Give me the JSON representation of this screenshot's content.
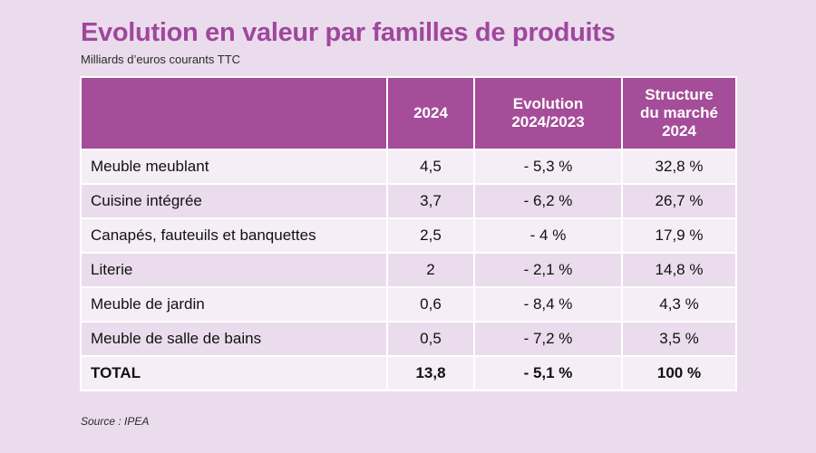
{
  "title": "Evolution en valeur par familles de produits",
  "subtitle": "Milliards d’euros courants TTC",
  "source": "Source : IPEA",
  "colors": {
    "header_bg": "#a54d99",
    "title": "#a0479d",
    "page_bg": "#eadcec",
    "row_light": "#f6eef6"
  },
  "chart_data": {
    "type": "table",
    "title": "Evolution en valeur par familles de produits",
    "subtitle": "Milliards d’euros courants TTC",
    "columns": [
      {
        "lines": [
          ""
        ]
      },
      {
        "lines": [
          "2024"
        ]
      },
      {
        "lines": [
          "Evolution",
          "2024/2023"
        ]
      },
      {
        "lines": [
          "Structure",
          "du marché",
          "2024"
        ]
      }
    ],
    "rows": [
      {
        "label": "Meuble meublant",
        "value_2024": "4,5",
        "evolution": "- 5,3 %",
        "structure": "32,8 %"
      },
      {
        "label": "Cuisine intégrée",
        "value_2024": "3,7",
        "evolution": "- 6,2 %",
        "structure": "26,7 %"
      },
      {
        "label": "Canapés, fauteuils et banquettes",
        "value_2024": "2,5",
        "evolution": "- 4 %",
        "structure": "17,9 %"
      },
      {
        "label": "Literie",
        "value_2024": "2",
        "evolution": "- 2,1 %",
        "structure": "14,8 %"
      },
      {
        "label": "Meuble de jardin",
        "value_2024": "0,6",
        "evolution": "- 8,4 %",
        "structure": "4,3 %"
      },
      {
        "label": "Meuble de salle de bains",
        "value_2024": "0,5",
        "evolution": "- 7,2 %",
        "structure": "3,5 %"
      }
    ],
    "total": {
      "label": "TOTAL",
      "value_2024": "13,8",
      "evolution": "- 5,1 %",
      "structure": "100 %"
    },
    "source": "Source : IPEA"
  }
}
